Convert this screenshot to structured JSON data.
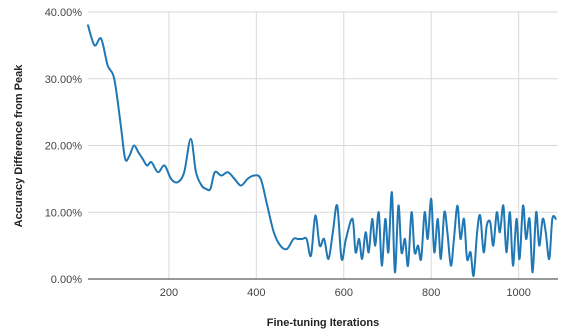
{
  "chart_data": {
    "type": "line",
    "title": "",
    "xlabel": "Fine-tuning Iterations",
    "ylabel": "Accuracy Difference from Peak",
    "xlim": [
      15,
      1090
    ],
    "ylim": [
      0,
      40
    ],
    "x_ticks": [
      200,
      400,
      600,
      800,
      1000
    ],
    "y_ticks": [
      "0.00%",
      "10.00%",
      "20.00%",
      "30.00%",
      "40.00%"
    ],
    "y_tick_values": [
      0,
      10,
      20,
      30,
      40
    ],
    "grid": "vertical-and-horizontal",
    "legend": "none",
    "line_color": "#1f77b4",
    "series": [
      {
        "x": [
          15,
          30,
          45,
          60,
          75,
          90,
          100,
          110,
          120,
          130,
          140,
          150,
          160,
          175,
          190,
          205,
          220,
          235,
          250,
          262,
          275,
          285,
          295,
          305,
          320,
          335,
          350,
          365,
          380,
          395,
          410,
          425,
          440,
          455,
          470,
          485,
          495,
          505,
          515,
          525,
          535,
          545,
          555,
          565,
          575,
          585,
          595,
          605,
          620,
          627,
          635,
          642,
          650,
          657,
          665,
          672,
          680,
          687,
          695,
          702,
          710,
          717,
          725,
          732,
          740,
          747,
          755,
          762,
          770,
          777,
          785,
          792,
          800,
          807,
          815,
          822,
          830,
          837,
          845,
          852,
          860,
          867,
          875,
          882,
          890,
          897,
          905,
          912,
          920,
          927,
          935,
          942,
          950,
          957,
          965,
          972,
          980,
          987,
          995,
          1002,
          1010,
          1017,
          1025,
          1032,
          1040,
          1047,
          1055,
          1062,
          1070,
          1077,
          1085
        ],
        "values": [
          38,
          35,
          36,
          32,
          30,
          23,
          18,
          18.5,
          20,
          19,
          18,
          17,
          17.5,
          16,
          17,
          15,
          14.5,
          16,
          21,
          16,
          14,
          13.5,
          13.5,
          16,
          15.5,
          16,
          15,
          14,
          15,
          15.5,
          15,
          11,
          7,
          5,
          4.5,
          6,
          6,
          6,
          6,
          3.5,
          9.5,
          5,
          6,
          3,
          7,
          11,
          3,
          6,
          9,
          4,
          6,
          3,
          7,
          4,
          9,
          5,
          10,
          2,
          9,
          4,
          13,
          1,
          11,
          4,
          6,
          2,
          10,
          4,
          5,
          3,
          10,
          6,
          12,
          4,
          9,
          3,
          10,
          7,
          2,
          6,
          11,
          6,
          9,
          3,
          4,
          0.5,
          7,
          9.5,
          4,
          8,
          8.5,
          5,
          10,
          7,
          11,
          4,
          10,
          2,
          9,
          3,
          11,
          6,
          9,
          1,
          10,
          5,
          9,
          7,
          3,
          9,
          9
        ]
      }
    ]
  }
}
